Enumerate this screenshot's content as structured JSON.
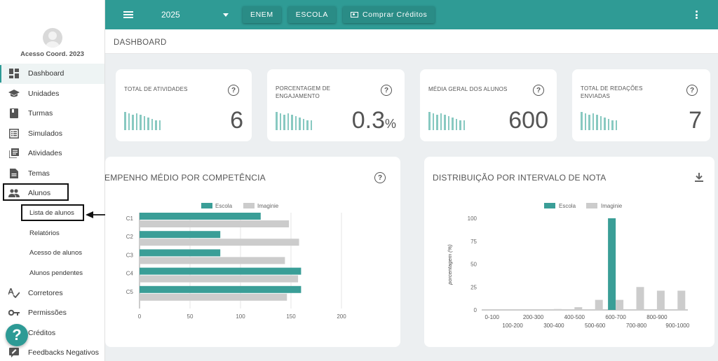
{
  "sidebar": {
    "user_name": "Acesso Coord. 2023",
    "items": [
      {
        "label": "Dashboard",
        "icon": "dashboard-icon"
      },
      {
        "label": "Unidades",
        "icon": "school-icon"
      },
      {
        "label": "Turmas",
        "icon": "book-icon"
      },
      {
        "label": "Simulados",
        "icon": "list-icon"
      },
      {
        "label": "Atividades",
        "icon": "library-icon"
      },
      {
        "label": "Temas",
        "icon": "document-icon"
      },
      {
        "label": "Alunos",
        "icon": "people-icon"
      }
    ],
    "sub_items": [
      {
        "label": "Lista de alunos"
      },
      {
        "label": "Relatórios"
      },
      {
        "label": "Acesso de alunos"
      },
      {
        "label": "Alunos pendentes"
      }
    ],
    "items_after": [
      {
        "label": "Corretores",
        "icon": "spellcheck-icon"
      },
      {
        "label": "Permissões",
        "icon": "key-icon"
      },
      {
        "label": "Créditos",
        "icon": "credit-icon"
      },
      {
        "label": "Feedbacks Negativos",
        "icon": "feedback-icon"
      }
    ],
    "help_glyph": "?"
  },
  "topbar": {
    "year": "2025",
    "buttons": [
      "ENEM",
      "ESCOLA"
    ],
    "buy_label": "Comprar Créditos",
    "accent": "#2f9b95"
  },
  "page": {
    "title": "DASHBOARD"
  },
  "stats": [
    {
      "label": "TOTAL DE ATIVIDADES",
      "value": "6",
      "unit": ""
    },
    {
      "label": "PORCENTAGEM DE ENGAJAMENTO",
      "value": "0.3",
      "unit": "%"
    },
    {
      "label": "MÉDIA GERAL DOS ALUNOS",
      "value": "600",
      "unit": ""
    },
    {
      "label": "TOTAL DE REDAÇÕES ENVIADAS",
      "value": "7",
      "unit": ""
    }
  ],
  "help_glyph": "?",
  "colors": {
    "teal": "#3a9e97",
    "gray": "#cccccc",
    "spark": "#88c9c1"
  },
  "chart_data": [
    {
      "type": "bar",
      "orientation": "horizontal",
      "title": "DESEMPENHO MÉDIO POR COMPETÊNCIA",
      "title_visible": "EMPENHO MÉDIO POR COMPETÊNCIA",
      "categories": [
        "C1",
        "C2",
        "C3",
        "C4",
        "C5"
      ],
      "series": [
        {
          "name": "Escola",
          "values": [
            120,
            80,
            80,
            160,
            160
          ]
        },
        {
          "name": "Imaginie",
          "values": [
            148,
            158,
            144,
            157,
            146
          ]
        }
      ],
      "xlim": [
        0,
        200
      ],
      "xticks": [
        0,
        50,
        100,
        150,
        200
      ],
      "legend": "top-center",
      "grid": true
    },
    {
      "type": "bar",
      "title": "DISTRIBUIÇÃO POR INTERVALO DE NOTA",
      "ylabel": "porcentagem (%)",
      "categories": [
        "0-100",
        "100-200",
        "200-300",
        "300-400",
        "400-500",
        "500-600",
        "600-700",
        "700-800",
        "800-900",
        "900-1000"
      ],
      "series": [
        {
          "name": "Escola",
          "values": [
            0,
            0,
            0,
            0,
            0,
            0,
            100,
            0,
            0,
            0
          ]
        },
        {
          "name": "Imaginie",
          "values": [
            0,
            0,
            0,
            1,
            3,
            11,
            11,
            25,
            21,
            21
          ]
        }
      ],
      "ylim": [
        0,
        100
      ],
      "yticks": [
        0,
        25,
        50,
        75,
        100
      ],
      "legend": "top-center",
      "grid": false
    }
  ]
}
